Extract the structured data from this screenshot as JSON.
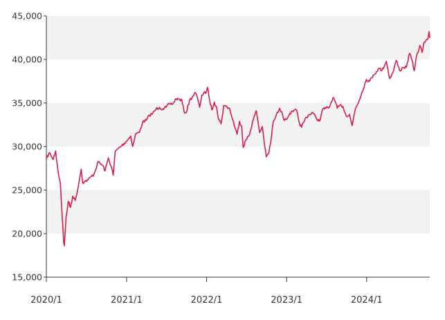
{
  "colors": {
    "line": "#d81b4a",
    "band": "#f2f2f2",
    "axis": "#333333",
    "text": "#333333",
    "background": "#ffffff"
  },
  "chart_data": {
    "type": "line",
    "title": "",
    "xlabel": "",
    "ylabel": "",
    "ylim": [
      15000,
      45000
    ],
    "xlim": [
      "2020-01-01",
      "2024-10-15"
    ],
    "y_ticks": [
      15000,
      20000,
      25000,
      30000,
      35000,
      40000,
      45000
    ],
    "y_tick_labels": [
      "15,000",
      "20,000",
      "25,000",
      "30,000",
      "35,000",
      "40,000",
      "45,000"
    ],
    "x_ticks": [
      "2020-01-01",
      "2021-01-01",
      "2022-01-01",
      "2023-01-01",
      "2024-01-01"
    ],
    "x_tick_labels": [
      "2020/1",
      "2021/1",
      "2022/1",
      "2023/1",
      "2024/1"
    ],
    "grid": "alternating horizontal bands",
    "legend": "none",
    "series": [
      {
        "name": "",
        "points": [
          [
            "2020-01-01",
            28600
          ],
          [
            "2020-01-15",
            29300
          ],
          [
            "2020-02-01",
            28500
          ],
          [
            "2020-02-12",
            29500
          ],
          [
            "2020-02-24",
            27000
          ],
          [
            "2020-03-05",
            25800
          ],
          [
            "2020-03-12",
            22500
          ],
          [
            "2020-03-20",
            19000
          ],
          [
            "2020-03-23",
            18600
          ],
          [
            "2020-03-31",
            21900
          ],
          [
            "2020-04-10",
            23700
          ],
          [
            "2020-04-20",
            23000
          ],
          [
            "2020-04-30",
            24300
          ],
          [
            "2020-05-12",
            23800
          ],
          [
            "2020-05-26",
            25500
          ],
          [
            "2020-06-08",
            27400
          ],
          [
            "2020-06-15",
            25800
          ],
          [
            "2020-06-25",
            26000
          ],
          [
            "2020-07-10",
            26200
          ],
          [
            "2020-07-25",
            26600
          ],
          [
            "2020-08-05",
            26800
          ],
          [
            "2020-08-25",
            28300
          ],
          [
            "2020-09-05",
            28000
          ],
          [
            "2020-09-15",
            27800
          ],
          [
            "2020-09-25",
            27200
          ],
          [
            "2020-10-10",
            28700
          ],
          [
            "2020-10-25",
            27500
          ],
          [
            "2020-11-01",
            26700
          ],
          [
            "2020-11-10",
            29400
          ],
          [
            "2020-11-25",
            29800
          ],
          [
            "2020-12-10",
            30100
          ],
          [
            "2020-12-31",
            30600
          ],
          [
            "2021-01-20",
            31200
          ],
          [
            "2021-01-29",
            30000
          ],
          [
            "2021-02-12",
            31500
          ],
          [
            "2021-02-28",
            31600
          ],
          [
            "2021-03-15",
            32800
          ],
          [
            "2021-03-31",
            33000
          ],
          [
            "2021-04-15",
            33600
          ],
          [
            "2021-04-30",
            33800
          ],
          [
            "2021-05-15",
            34300
          ],
          [
            "2021-05-31",
            34500
          ],
          [
            "2021-06-15",
            34300
          ],
          [
            "2021-06-30",
            34500
          ],
          [
            "2021-07-15",
            34900
          ],
          [
            "2021-07-31",
            34900
          ],
          [
            "2021-08-15",
            35500
          ],
          [
            "2021-08-31",
            35400
          ],
          [
            "2021-09-10",
            35300
          ],
          [
            "2021-09-20",
            34000
          ],
          [
            "2021-09-30",
            33900
          ],
          [
            "2021-10-15",
            35300
          ],
          [
            "2021-10-31",
            35800
          ],
          [
            "2021-11-10",
            36200
          ],
          [
            "2021-11-20",
            35600
          ],
          [
            "2021-11-30",
            34500
          ],
          [
            "2021-12-10",
            35900
          ],
          [
            "2021-12-31",
            36300
          ],
          [
            "2022-01-05",
            36800
          ],
          [
            "2022-01-15",
            35300
          ],
          [
            "2022-01-25",
            34200
          ],
          [
            "2022-02-05",
            35100
          ],
          [
            "2022-02-15",
            34600
          ],
          [
            "2022-02-24",
            33200
          ],
          [
            "2022-03-08",
            32600
          ],
          [
            "2022-03-20",
            34700
          ],
          [
            "2022-03-31",
            34600
          ],
          [
            "2022-04-15",
            34400
          ],
          [
            "2022-04-30",
            33100
          ],
          [
            "2022-05-10",
            32200
          ],
          [
            "2022-05-20",
            31400
          ],
          [
            "2022-05-31",
            32900
          ],
          [
            "2022-06-10",
            32300
          ],
          [
            "2022-06-17",
            29900
          ],
          [
            "2022-06-30",
            30800
          ],
          [
            "2022-07-15",
            31300
          ],
          [
            "2022-07-29",
            32800
          ],
          [
            "2022-08-16",
            34100
          ],
          [
            "2022-08-31",
            31600
          ],
          [
            "2022-09-12",
            32300
          ],
          [
            "2022-09-20",
            30700
          ],
          [
            "2022-09-30",
            28800
          ],
          [
            "2022-10-12",
            29300
          ],
          [
            "2022-10-20",
            30400
          ],
          [
            "2022-10-31",
            32700
          ],
          [
            "2022-11-15",
            33600
          ],
          [
            "2022-11-30",
            34400
          ],
          [
            "2022-12-10",
            34000
          ],
          [
            "2022-12-22",
            33000
          ],
          [
            "2022-12-31",
            33100
          ],
          [
            "2023-01-15",
            33800
          ],
          [
            "2023-01-31",
            34000
          ],
          [
            "2023-02-15",
            34200
          ],
          [
            "2023-02-28",
            32700
          ],
          [
            "2023-03-10",
            32200
          ],
          [
            "2023-03-25",
            33100
          ],
          [
            "2023-04-10",
            33600
          ],
          [
            "2023-04-30",
            33900
          ],
          [
            "2023-05-15",
            33300
          ],
          [
            "2023-05-31",
            32900
          ],
          [
            "2023-06-15",
            34300
          ],
          [
            "2023-06-30",
            34400
          ],
          [
            "2023-07-15",
            34500
          ],
          [
            "2023-07-31",
            35600
          ],
          [
            "2023-08-10",
            35200
          ],
          [
            "2023-08-20",
            34400
          ],
          [
            "2023-08-31",
            34700
          ],
          [
            "2023-09-15",
            34600
          ],
          [
            "2023-09-30",
            33500
          ],
          [
            "2023-10-15",
            33700
          ],
          [
            "2023-10-27",
            32400
          ],
          [
            "2023-11-10",
            34300
          ],
          [
            "2023-11-30",
            35400
          ],
          [
            "2023-12-10",
            36200
          ],
          [
            "2023-12-31",
            37700
          ],
          [
            "2024-01-15",
            37500
          ],
          [
            "2024-01-31",
            38200
          ],
          [
            "2024-02-15",
            38600
          ],
          [
            "2024-02-28",
            39000
          ],
          [
            "2024-03-10",
            38700
          ],
          [
            "2024-03-31",
            39800
          ],
          [
            "2024-04-15",
            37800
          ],
          [
            "2024-04-30",
            38500
          ],
          [
            "2024-05-15",
            39900
          ],
          [
            "2024-05-31",
            38700
          ],
          [
            "2024-06-15",
            39100
          ],
          [
            "2024-06-30",
            39100
          ],
          [
            "2024-07-15",
            40700
          ],
          [
            "2024-07-25",
            40000
          ],
          [
            "2024-08-05",
            38700
          ],
          [
            "2024-08-15",
            40300
          ],
          [
            "2024-08-31",
            41600
          ],
          [
            "2024-09-10",
            40800
          ],
          [
            "2024-09-20",
            42000
          ],
          [
            "2024-09-30",
            42300
          ],
          [
            "2024-10-05",
            42300
          ],
          [
            "2024-10-08",
            42600
          ],
          [
            "2024-10-12",
            43200
          ],
          [
            "2024-10-15",
            42500
          ]
        ]
      }
    ]
  }
}
